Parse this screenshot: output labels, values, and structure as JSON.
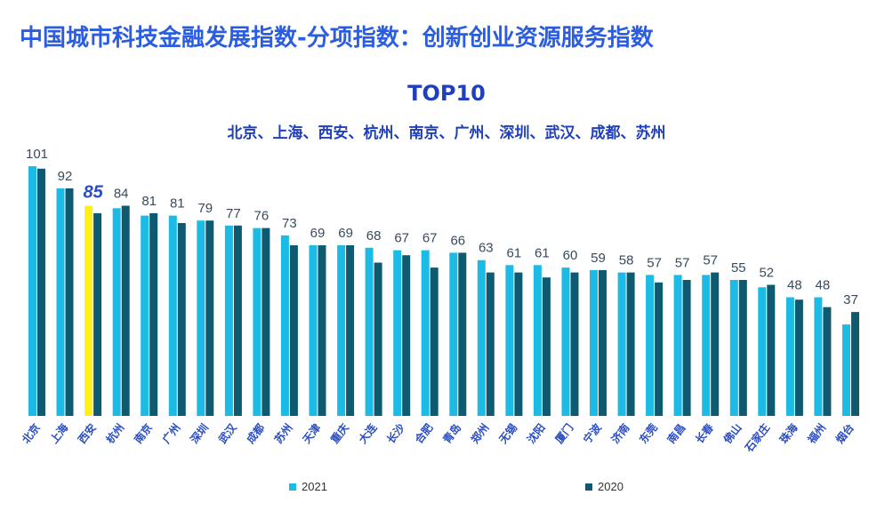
{
  "title": "中国城市科技金融发展指数-分项指数：创新创业资源服务指数",
  "subtitle": "TOP10",
  "top10_cities": "北京、上海、西安、杭州、南京、广州、深圳、武汉、成都、苏州",
  "colors": {
    "series_2021": "#1bbbe6",
    "series_2020": "#0e5a70",
    "highlight": "#ffef1a",
    "value_label": "#3a4a5c",
    "highlight_label": "#2a4ec0",
    "tick_label": "#2a4ec0"
  },
  "chart_data": {
    "type": "bar",
    "categories": [
      "北京",
      "上海",
      "西安",
      "杭州",
      "南京",
      "广州",
      "深圳",
      "武汉",
      "成都",
      "苏州",
      "天津",
      "重庆",
      "大连",
      "长沙",
      "合肥",
      "青岛",
      "郑州",
      "无锡",
      "沈阳",
      "厦门",
      "宁波",
      "济南",
      "东莞",
      "南昌",
      "长春",
      "佛山",
      "石家庄",
      "珠海",
      "福州",
      "烟台"
    ],
    "series": [
      {
        "name": "2021",
        "values": [
          101,
          92,
          85,
          84,
          81,
          81,
          79,
          77,
          76,
          73,
          69,
          69,
          68,
          67,
          67,
          66,
          63,
          61,
          61,
          60,
          59,
          58,
          57,
          57,
          57,
          55,
          52,
          48,
          48,
          37
        ]
      },
      {
        "name": "2020",
        "values": [
          100,
          92,
          82,
          85,
          82,
          78,
          79,
          77,
          76,
          69,
          69,
          69,
          62,
          65,
          60,
          66,
          58,
          58,
          56,
          58,
          59,
          58,
          54,
          55,
          58,
          55,
          53,
          47,
          44,
          42
        ]
      }
    ],
    "data_labels": [
      "101",
      "92",
      "85",
      "84",
      "81",
      "81",
      "79",
      "77",
      "76",
      "73",
      "69",
      "69",
      "68",
      "67",
      "67",
      "66",
      "63",
      "61",
      "61",
      "60",
      "59",
      "58",
      "57",
      "57",
      "57",
      "55",
      "52",
      "48",
      "48",
      "37"
    ],
    "highlight_index": 2,
    "ylim": [
      0,
      101
    ],
    "xlabel": "",
    "ylabel": "",
    "legend": {
      "position": "bottom",
      "entries": [
        "2021",
        "2020"
      ]
    }
  }
}
